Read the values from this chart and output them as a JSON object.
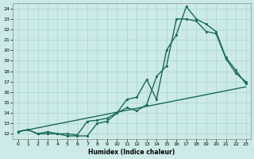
{
  "xlabel": "Humidex (Indice chaleur)",
  "xlim": [
    0,
    23
  ],
  "ylim": [
    11.5,
    24.5
  ],
  "yticks": [
    12,
    13,
    14,
    15,
    16,
    17,
    18,
    19,
    20,
    21,
    22,
    23,
    24
  ],
  "xticks": [
    0,
    1,
    2,
    3,
    4,
    5,
    6,
    7,
    8,
    9,
    10,
    11,
    12,
    13,
    14,
    15,
    16,
    17,
    18,
    19,
    20,
    21,
    22,
    23
  ],
  "bg_color": "#cceae7",
  "grid_color": "#aad4d0",
  "line_color": "#1a6b5a",
  "line1_x": [
    0,
    1,
    2,
    3,
    4,
    5,
    6,
    7,
    8,
    9,
    10,
    11,
    12,
    13,
    14,
    15,
    16,
    17,
    18,
    19,
    20,
    21,
    22,
    23
  ],
  "line1_y": [
    12.2,
    12.4,
    12.0,
    12.0,
    12.0,
    11.8,
    11.8,
    11.8,
    13.0,
    13.2,
    14.0,
    14.5,
    14.2,
    14.8,
    17.5,
    18.5,
    23.0,
    23.0,
    22.8,
    21.8,
    21.6,
    19.2,
    17.8,
    17.0
  ],
  "line2_x": [
    0,
    1,
    2,
    3,
    4,
    5,
    6,
    7,
    8,
    9,
    10,
    11,
    12,
    13,
    14,
    15,
    16,
    17,
    18,
    19,
    20,
    21,
    22,
    23
  ],
  "line2_y": [
    12.2,
    12.4,
    12.0,
    12.2,
    12.0,
    12.0,
    11.9,
    13.2,
    13.3,
    13.5,
    14.0,
    15.3,
    15.5,
    17.2,
    15.3,
    20.0,
    21.5,
    24.2,
    23.0,
    22.5,
    21.8,
    19.3,
    18.1,
    16.8
  ],
  "line3_x": [
    0,
    23
  ],
  "line3_y": [
    12.2,
    16.5
  ],
  "marker_size": 2.5,
  "line_width": 1.0
}
